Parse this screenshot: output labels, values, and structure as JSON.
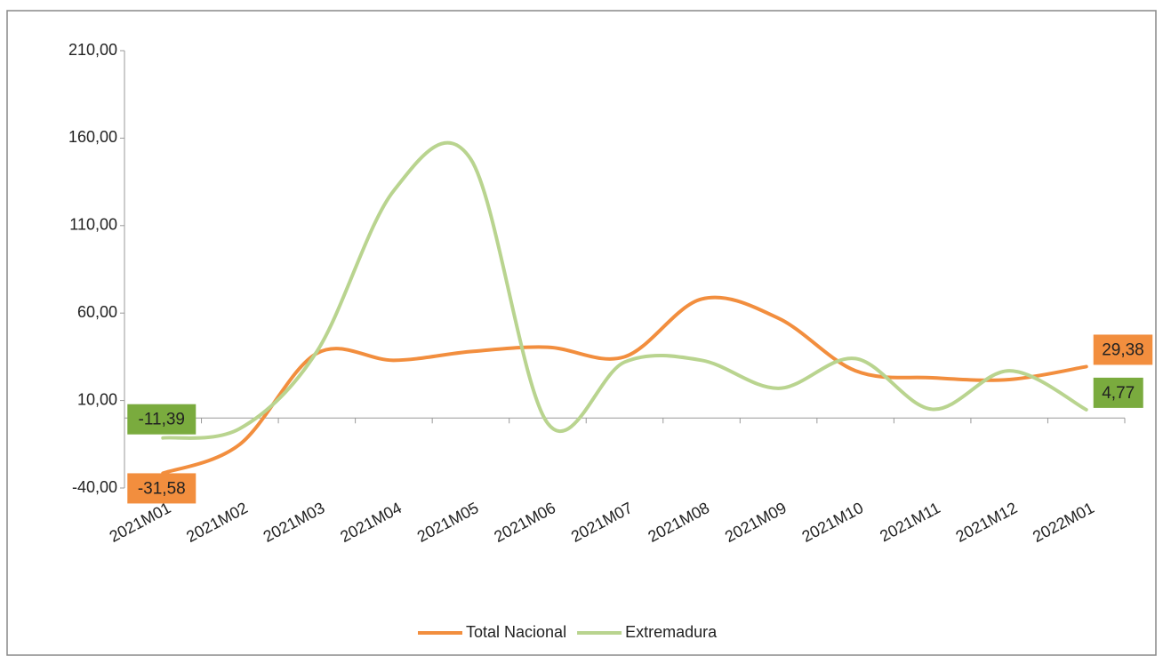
{
  "chart_data": {
    "type": "line",
    "categories": [
      "2021M01",
      "2021M02",
      "2021M03",
      "2021M04",
      "2021M05",
      "2021M06",
      "2021M07",
      "2021M08",
      "2021M09",
      "2021M10",
      "2021M11",
      "2021M12",
      "2022M01"
    ],
    "series": [
      {
        "name": "Total Nacional",
        "color": "#f28e3e",
        "values": [
          -31.58,
          -15,
          37,
          33,
          38,
          40.5,
          35,
          68,
          57,
          27,
          23,
          22,
          29.38
        ],
        "value_labels": [
          "-31,58",
          null,
          null,
          null,
          null,
          null,
          null,
          null,
          null,
          null,
          null,
          null,
          "29,38"
        ]
      },
      {
        "name": "Extremadura",
        "color": "#b9d48f",
        "values": [
          -11.39,
          -6,
          38,
          130,
          148,
          -3,
          32,
          33,
          17,
          34,
          5,
          27,
          4.77
        ],
        "value_labels": [
          "-11,39",
          null,
          null,
          null,
          null,
          null,
          null,
          null,
          null,
          null,
          null,
          null,
          "4,77"
        ]
      }
    ],
    "ylim": [
      -40,
      210
    ],
    "yticks": [
      {
        "value": -40,
        "label": "-40,00"
      },
      {
        "value": 10,
        "label": "10,00"
      },
      {
        "value": 60,
        "label": "60,00"
      },
      {
        "value": 110,
        "label": "110,00"
      },
      {
        "value": 160,
        "label": "160,00"
      },
      {
        "value": 210,
        "label": "210,00"
      }
    ],
    "grid": false,
    "legend": "bottom"
  }
}
